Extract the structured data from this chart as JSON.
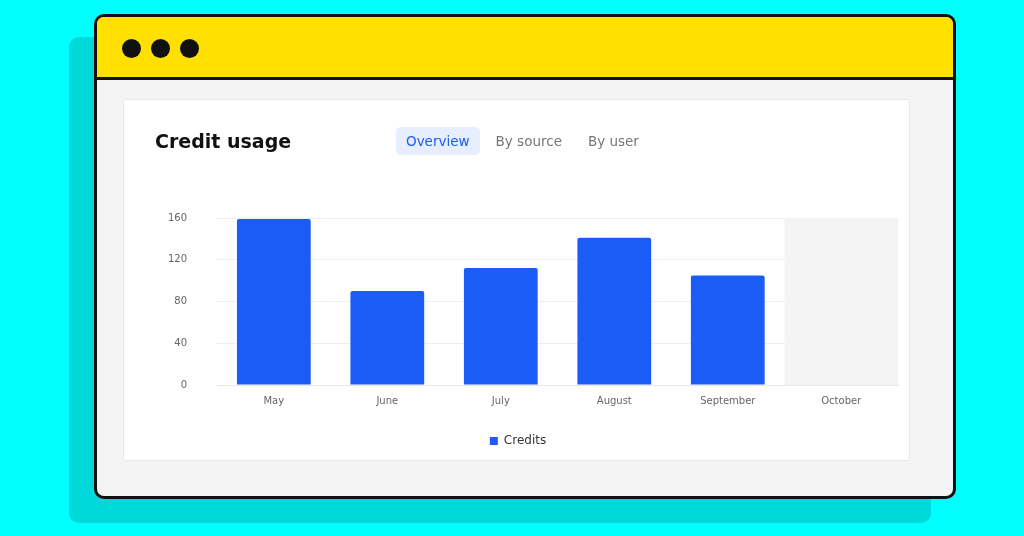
{
  "chart_data": {
    "type": "bar",
    "title": "Credit usage",
    "annotations": [
      "Overview",
      "By source",
      "By user"
    ],
    "categories": [
      "May",
      "June",
      "July",
      "August",
      "September",
      "October"
    ],
    "series": [
      {
        "name": "Credits",
        "color": "#1c5cf6",
        "values": [
          159,
          90,
          112,
          141,
          105,
          null
        ]
      }
    ],
    "ylim": [
      0,
      160
    ],
    "yticks": [
      0,
      40,
      80,
      120,
      160
    ],
    "grid": "y",
    "legend": "bottom",
    "bands": [
      {
        "axis": "x",
        "from": "October",
        "to": "October",
        "color": "#f4f4f4"
      }
    ]
  }
}
